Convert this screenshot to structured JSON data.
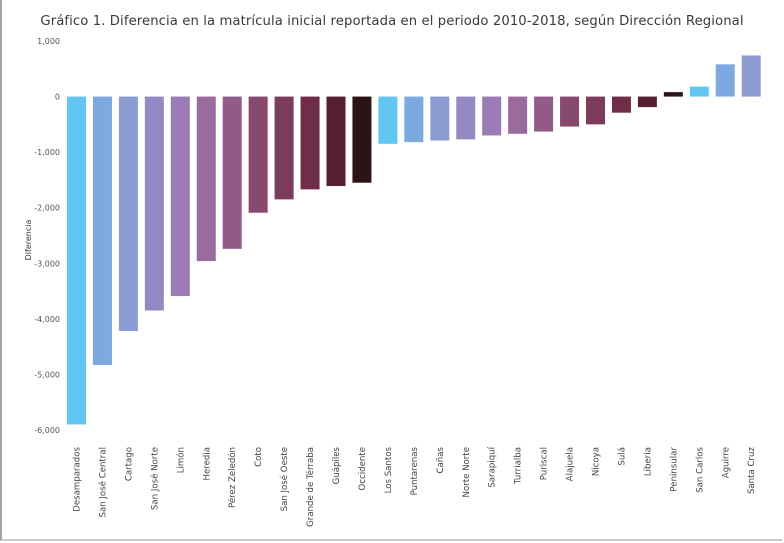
{
  "chart_data": {
    "type": "bar",
    "title": "Gráfico 1. Diferencia en la matrícula inicial reportada en el periodo 2010-2018, según Dirección Regional",
    "xlabel": "",
    "ylabel": "Diferencia",
    "ylim": [
      -6000,
      1000
    ],
    "yticks": [
      1000,
      0,
      -1000,
      -2000,
      -3000,
      -4000,
      -5000,
      -6000
    ],
    "ytick_labels": [
      "1,000",
      "0",
      "-1,000",
      "-2,000",
      "-3,000",
      "-4,000",
      "-5,000",
      "-6,000"
    ],
    "grid": false,
    "legend": "none",
    "categories": [
      "Desamparados",
      "San José Central",
      "Cartago",
      "San José Norte",
      "Limón",
      "Heredia",
      "Pérez Zeledón",
      "Coto",
      "San José Oeste",
      "Grande de Térraba",
      "Guápiles",
      "Occidente",
      "Los Santos",
      "Puntarenas",
      "Cañas",
      "Norte Norte",
      "Sarapiquí",
      "Turrialba",
      "Puriscal",
      "Alajuela",
      "Nicoya",
      "Sulá",
      "Liberia",
      "Peninsular",
      "San Carlos",
      "Aguirre",
      "Santa Cruz"
    ],
    "values": [
      -5900,
      -4830,
      -4220,
      -3850,
      -3590,
      -2960,
      -2740,
      -2090,
      -1850,
      -1670,
      -1610,
      -1550,
      -850,
      -820,
      -790,
      -770,
      -700,
      -670,
      -630,
      -540,
      -500,
      -290,
      -190,
      80,
      180,
      580,
      740
    ],
    "colors": [
      "#62c6f2",
      "#7ba9e0",
      "#8c9bd2",
      "#9589c4",
      "#9a7bb5",
      "#9b6a9e",
      "#925a86",
      "#87496e",
      "#7d3b5c",
      "#6f2d48",
      "#552034",
      "#2d1414",
      "#62c6f2",
      "#7ba9e0",
      "#8c9bd2",
      "#9589c4",
      "#9a7bb5",
      "#9b6a9e",
      "#925a86",
      "#87496e",
      "#7d3b5c",
      "#6f2d48",
      "#552034",
      "#2d1414",
      "#62c6f2",
      "#7ba9e0",
      "#8c9bd2"
    ]
  }
}
